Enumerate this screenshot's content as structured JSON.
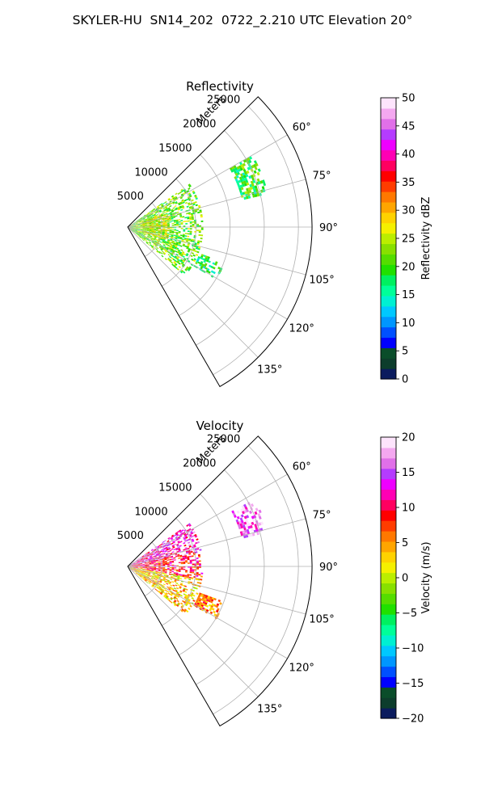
{
  "title": "SKYLER-HU  SN14_202  0722_2.210 UTC Elevation 20°",
  "chart_data": [
    {
      "type": "polar-sector",
      "title": "Reflectivity",
      "radial_label": "Meters",
      "radial_ticks": [
        5000,
        10000,
        15000,
        20000,
        25000
      ],
      "radial_tick_labels": [
        "5000",
        "10000",
        "15000",
        "20000",
        "25000"
      ],
      "rmax": 27000,
      "azimuth_range_deg": [
        45,
        150
      ],
      "azimuth_ticks": [
        60,
        75,
        90,
        105,
        120,
        135
      ],
      "azimuth_tick_labels": [
        "60°",
        "75°",
        "90°",
        "105°",
        "120°",
        "135°"
      ],
      "grid": true,
      "colorbar": {
        "label": "Reflectivity dBZ",
        "range": [
          0,
          50
        ],
        "ticks": [
          0,
          5,
          10,
          15,
          20,
          25,
          30,
          35,
          40,
          45,
          50
        ],
        "tick_labels": [
          "0",
          "5",
          "10",
          "15",
          "20",
          "25",
          "30",
          "35",
          "40",
          "45",
          "50"
        ],
        "colors": [
          "#0b1b5e",
          "#0d3d2c",
          "#0a4d2a",
          "#0000ff",
          "#0050ff",
          "#0096ff",
          "#00c8ff",
          "#00f0d2",
          "#00ff99",
          "#00f060",
          "#20e000",
          "#55dd00",
          "#88e000",
          "#bbee00",
          "#f5f000",
          "#ffd200",
          "#ffa500",
          "#ff7800",
          "#ff3c00",
          "#ff0000",
          "#ff0060",
          "#ff00b4",
          "#ee00ff",
          "#b43cff",
          "#e070e8",
          "#f4a8f0",
          "#fde4fc"
        ]
      },
      "echoes": [
        {
          "az": [
            55,
            130
          ],
          "r": [
            0,
            11000
          ],
          "value": 22
        },
        {
          "az": [
            70,
            108
          ],
          "r": [
            2000,
            6000
          ],
          "value": 26
        },
        {
          "az": [
            60,
            76
          ],
          "r": [
            17000,
            21000
          ],
          "value": 20
        },
        {
          "az": [
            110,
            120
          ],
          "r": [
            11000,
            15000
          ],
          "value": 18
        }
      ]
    },
    {
      "type": "polar-sector",
      "title": "Velocity",
      "radial_label": "Meters",
      "radial_ticks": [
        5000,
        10000,
        15000,
        20000,
        25000
      ],
      "radial_tick_labels": [
        "5000",
        "10000",
        "15000",
        "20000",
        "25000"
      ],
      "rmax": 27000,
      "azimuth_range_deg": [
        45,
        150
      ],
      "azimuth_ticks": [
        60,
        75,
        90,
        105,
        120,
        135
      ],
      "azimuth_tick_labels": [
        "60°",
        "75°",
        "90°",
        "105°",
        "120°",
        "135°"
      ],
      "grid": true,
      "colorbar": {
        "label": "Velocity (m/s)",
        "range": [
          -20,
          20
        ],
        "ticks": [
          -20,
          -15,
          -10,
          -5,
          0,
          5,
          10,
          15,
          20
        ],
        "tick_labels": [
          "−20",
          "−15",
          "−10",
          "−5",
          "0",
          "5",
          "10",
          "15",
          "20"
        ],
        "colors": [
          "#0b1b5e",
          "#0d3d2c",
          "#0a4d2a",
          "#0000ff",
          "#0050ff",
          "#0096ff",
          "#00c8ff",
          "#00f0d2",
          "#00ff99",
          "#00f060",
          "#20e000",
          "#55dd00",
          "#88e000",
          "#bbee00",
          "#f5f000",
          "#ffd200",
          "#ffa500",
          "#ff7800",
          "#ff3c00",
          "#ff0000",
          "#ff0060",
          "#ff00b4",
          "#ee00ff",
          "#b43cff",
          "#e070e8",
          "#f4a8f0",
          "#fde4fc"
        ]
      },
      "echoes": [
        {
          "az": [
            55,
            78
          ],
          "r": [
            0,
            11000
          ],
          "value": 13
        },
        {
          "az": [
            78,
            100
          ],
          "r": [
            0,
            11000
          ],
          "value": 9
        },
        {
          "az": [
            100,
            130
          ],
          "r": [
            0,
            11000
          ],
          "value": 3
        },
        {
          "az": [
            62,
            76
          ],
          "r": [
            17000,
            21000
          ],
          "value": 16
        },
        {
          "az": [
            110,
            120
          ],
          "r": [
            11000,
            15000
          ],
          "value": 6
        }
      ]
    }
  ]
}
